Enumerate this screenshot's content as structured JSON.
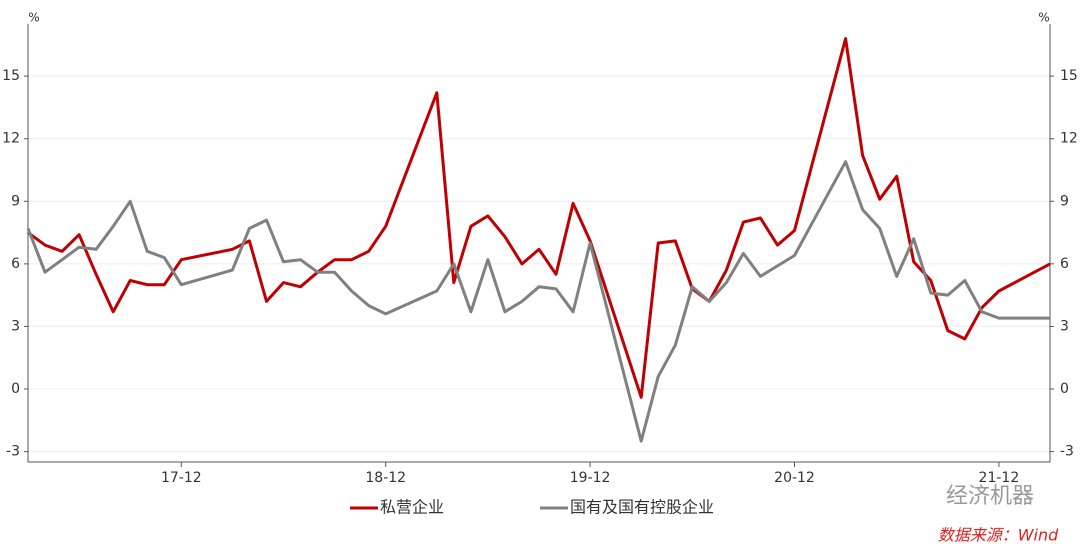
{
  "chart_data": {
    "type": "line",
    "ylabel": "%",
    "y2label": "%",
    "x": [
      3,
      4,
      5,
      6,
      7,
      8,
      9,
      10,
      11,
      12,
      15,
      16,
      17,
      18,
      19,
      20,
      21,
      22,
      23,
      24,
      27,
      28,
      29,
      30,
      31,
      32,
      33,
      34,
      35,
      36,
      39,
      40,
      41,
      42,
      43,
      44,
      45,
      46,
      47,
      48,
      51,
      52,
      53,
      54,
      55,
      56,
      57,
      58,
      59,
      60,
      63
    ],
    "xlim": [
      3,
      63
    ],
    "xticks": [
      {
        "value": 12,
        "label": "17-12"
      },
      {
        "value": 24,
        "label": "18-12"
      },
      {
        "value": 36,
        "label": "19-12"
      },
      {
        "value": 48,
        "label": "20-12"
      },
      {
        "value": 60,
        "label": "21-12"
      }
    ],
    "ylim": [
      -3.5,
      17.5
    ],
    "yticks": [
      -3,
      0,
      3,
      6,
      9,
      12,
      15
    ],
    "y2lim": [
      -3.5,
      17.5
    ],
    "y2ticks": [
      -3,
      0,
      3,
      6,
      9,
      12,
      15
    ],
    "grid": true,
    "legend": "bottom",
    "series": [
      {
        "name": "私营企业",
        "color": "#c00000",
        "values": [
          7.5,
          6.9,
          6.6,
          7.4,
          5.5,
          3.7,
          5.2,
          5.0,
          5.0,
          6.2,
          6.7,
          7.1,
          4.2,
          5.1,
          4.9,
          5.6,
          6.2,
          6.2,
          6.6,
          7.8,
          14.2,
          5.1,
          7.8,
          8.3,
          7.3,
          6.0,
          6.7,
          5.5,
          8.9,
          7.1,
          -0.4,
          7.0,
          7.1,
          4.8,
          4.2,
          5.7,
          8.0,
          8.2,
          6.9,
          7.6,
          16.8,
          11.2,
          9.1,
          10.2,
          6.1,
          5.2,
          2.8,
          2.4,
          3.9,
          4.7,
          6.0
        ]
      },
      {
        "name": "国有及国有控股企业",
        "color": "#808080",
        "values": [
          7.7,
          5.6,
          6.2,
          6.8,
          6.7,
          7.8,
          9.0,
          6.6,
          6.3,
          5.0,
          5.7,
          7.7,
          8.1,
          6.1,
          6.2,
          5.6,
          5.6,
          4.7,
          4.0,
          3.6,
          4.7,
          6.0,
          3.7,
          6.2,
          3.7,
          4.2,
          4.9,
          4.8,
          3.7,
          7.0,
          -2.5,
          0.6,
          2.1,
          4.9,
          4.2,
          5.1,
          6.5,
          5.4,
          5.9,
          6.4,
          10.9,
          8.6,
          7.7,
          5.4,
          7.2,
          4.6,
          4.5,
          5.2,
          3.7,
          3.4,
          3.4
        ]
      }
    ],
    "watermark": "经济机器",
    "source": "数据来源：Wind"
  }
}
